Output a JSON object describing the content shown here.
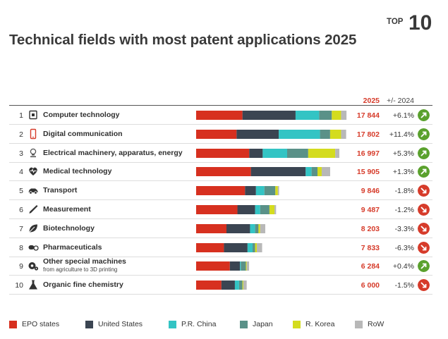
{
  "header": {
    "title": "Technical fields with most patent applications 2025",
    "badge_top": "TOP",
    "badge_num": "10",
    "col_year": "2025",
    "col_change": "+/- 2024"
  },
  "colors": {
    "EPO states": "#d7301f",
    "United States": "#3b4552",
    "P.R. China": "#33c4c4",
    "Japan": "#5a9188",
    "R. Korea": "#d4dc1e",
    "RoW": "#b8b8b8",
    "up": "#5aa12d",
    "down": "#d63b2a"
  },
  "chart_data": {
    "type": "bar",
    "stacked": true,
    "orientation": "horizontal",
    "title": "Technical fields with most patent applications 2025",
    "categories": [
      "Computer technology",
      "Digital communication",
      "Electrical machinery, apparatus, energy",
      "Medical technology",
      "Transport",
      "Measurement",
      "Biotechnology",
      "Pharmaceuticals",
      "Other special machines",
      "Organic fine chemistry"
    ],
    "series": [
      {
        "name": "EPO states",
        "values": [
          5500,
          4800,
          6300,
          6500,
          5800,
          4900,
          3600,
          3300,
          4000,
          3000
        ]
      },
      {
        "name": "United States",
        "values": [
          6300,
          5000,
          1600,
          6500,
          1300,
          2100,
          2800,
          2800,
          1200,
          1600
        ]
      },
      {
        "name": "P.R. China",
        "values": [
          2800,
          4900,
          2900,
          700,
          1000,
          600,
          600,
          600,
          100,
          500
        ]
      },
      {
        "name": "Japan",
        "values": [
          1500,
          1200,
          2500,
          700,
          1300,
          1100,
          400,
          300,
          600,
          400
        ]
      },
      {
        "name": "R. Korea",
        "values": [
          1100,
          1300,
          3200,
          500,
          300,
          600,
          200,
          200,
          100,
          100
        ]
      },
      {
        "name": "RoW",
        "values": [
          644,
          602,
          497,
          1005,
          146,
          187,
          603,
          633,
          284,
          400
        ]
      }
    ],
    "totals": [
      "17 844",
      "17 802",
      "16 997",
      "15 905",
      "9 846",
      "9 487",
      "8 203",
      "7 833",
      "6 284",
      "6 000"
    ],
    "changes": [
      "+6.1%",
      "+11.4%",
      "+5.3%",
      "+1.3%",
      "-1.8%",
      "-1.2%",
      "-3.3%",
      "-6.3%",
      "+0.4%",
      "-1.5%"
    ],
    "xlim": [
      0,
      18000
    ],
    "grid": false,
    "legend_position": "bottom"
  },
  "rows": [
    {
      "rank": "1",
      "label": "Computer technology",
      "sublabel": "",
      "icon": "computer-chip-icon",
      "dir": "up"
    },
    {
      "rank": "2",
      "label": "Digital communication",
      "sublabel": "",
      "icon": "smartphone-icon",
      "dir": "up"
    },
    {
      "rank": "3",
      "label": "Electrical machinery, apparatus, energy",
      "sublabel": "",
      "icon": "lightbulb-icon",
      "dir": "up"
    },
    {
      "rank": "4",
      "label": "Medical technology",
      "sublabel": "",
      "icon": "heart-pulse-icon",
      "dir": "up"
    },
    {
      "rank": "5",
      "label": "Transport",
      "sublabel": "",
      "icon": "car-icon",
      "dir": "down"
    },
    {
      "rank": "6",
      "label": "Measurement",
      "sublabel": "",
      "icon": "pen-icon",
      "dir": "down"
    },
    {
      "rank": "7",
      "label": "Biotechnology",
      "sublabel": "",
      "icon": "leaf-icon",
      "dir": "down"
    },
    {
      "rank": "8",
      "label": "Pharmaceuticals",
      "sublabel": "",
      "icon": "pill-icon",
      "dir": "down"
    },
    {
      "rank": "9",
      "label": "Other special machines",
      "sublabel": "from agriculture to 3D printing",
      "icon": "gear-icon",
      "dir": "up"
    },
    {
      "rank": "10",
      "label": "Organic fine chemistry",
      "sublabel": "",
      "icon": "flask-icon",
      "dir": "down"
    }
  ],
  "legend": [
    "EPO states",
    "United States",
    "P.R. China",
    "Japan",
    "R. Korea",
    "RoW"
  ]
}
